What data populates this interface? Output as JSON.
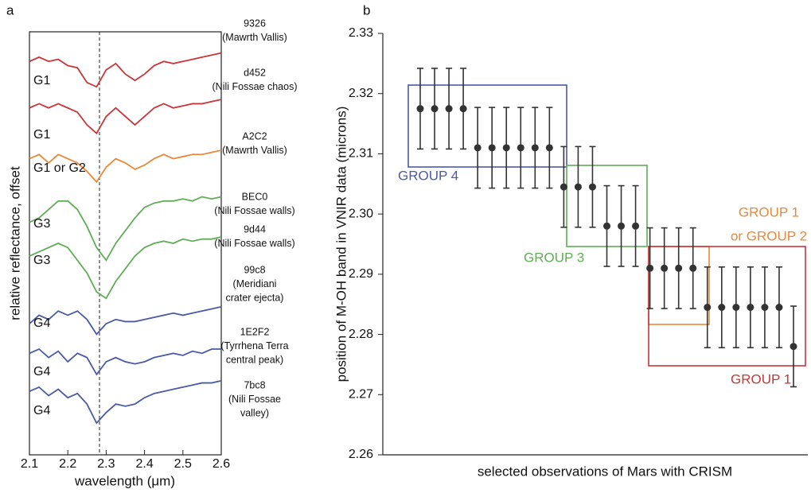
{
  "chart_data": [
    {
      "type": "line",
      "panel": "a",
      "xlabel": "wavelength (μm)",
      "ylabel": "relative reflectance, offset",
      "xlim": [
        2.1,
        2.6
      ],
      "xticks": [
        2.1,
        2.2,
        2.3,
        2.4,
        2.5,
        2.6
      ],
      "ylim": [
        0,
        100
      ],
      "x": [
        2.1,
        2.125,
        2.15,
        2.175,
        2.2,
        2.225,
        2.25,
        2.275,
        2.3,
        2.325,
        2.35,
        2.375,
        2.4,
        2.425,
        2.45,
        2.475,
        2.5,
        2.525,
        2.55,
        2.575,
        2.6
      ],
      "series": [
        {
          "name": [
            "9326",
            "(Mawrth Vallis)"
          ],
          "group": "G1",
          "color": "#c8363a",
          "values": [
            93,
            94,
            93,
            93.5,
            92,
            91.5,
            88,
            87,
            91,
            92.5,
            90,
            88.5,
            90,
            92,
            93,
            92.5,
            93,
            93.5,
            94,
            94.5,
            95
          ]
        },
        {
          "name": [
            "d452",
            "(Nili Fossae chaos)"
          ],
          "group": "G1",
          "color": "#c8363a",
          "values": [
            82,
            83,
            82,
            83,
            82,
            81,
            78,
            76,
            80,
            82,
            80,
            78,
            80,
            82,
            83,
            82,
            82.5,
            83,
            83,
            83.5,
            84
          ]
        },
        {
          "name": [
            "A2C2",
            "(Mawrth Vallis)"
          ],
          "group": "G1 or G2",
          "color": "#e8883a",
          "values": [
            70,
            71,
            69,
            71,
            70,
            69,
            67,
            64.5,
            68,
            70,
            69,
            67.5,
            68.5,
            70,
            71,
            70,
            70.5,
            71,
            71,
            71.5,
            72
          ]
        },
        {
          "name": [
            "BEC0",
            "(Nili Fossae walls)"
          ],
          "group": "G3",
          "color": "#5fae56",
          "values": [
            55,
            56,
            58,
            60,
            60,
            58,
            54,
            49,
            46,
            50,
            53,
            56,
            58.5,
            59.5,
            60,
            60,
            60.5,
            60,
            61,
            60.5,
            61
          ]
        },
        {
          "name": [
            "9d44",
            "(Nili Fossae walls)"
          ],
          "group": "G3",
          "color": "#5fae56",
          "values": [
            47,
            48,
            49,
            50,
            49,
            46,
            43,
            38.5,
            37,
            41,
            44,
            47,
            49,
            50,
            50.5,
            50,
            51,
            50.5,
            51,
            51,
            51.5
          ]
        },
        {
          "name": [
            "99c8",
            "(Meridiani",
            "crater ejecta)"
          ],
          "group": "G4",
          "color": "#4a5aa6",
          "values": [
            31,
            33,
            32,
            34,
            33,
            34,
            32,
            28.5,
            31,
            32,
            31.5,
            31.5,
            32,
            32.5,
            33,
            33.5,
            33,
            33.5,
            34,
            34.5,
            35
          ]
        },
        {
          "name": [
            "1E2F2",
            "(Tyrrhena Terra",
            "central peak)"
          ],
          "group": "G4",
          "color": "#4a5aa6",
          "values": [
            24,
            25,
            23,
            24.5,
            22,
            24,
            23,
            19,
            22,
            23,
            22,
            21.5,
            22,
            23,
            23.5,
            24,
            23.5,
            24.5,
            24,
            25,
            25
          ]
        },
        {
          "name": [
            "7bc8",
            "(Nili Fossae",
            "valley)"
          ],
          "group": "G4",
          "color": "#4a5aa6",
          "values": [
            15,
            16,
            14,
            15.5,
            13.5,
            14.5,
            12,
            7.5,
            10,
            12,
            11.5,
            12,
            13.5,
            14.5,
            15,
            15.5,
            16,
            16.5,
            17,
            17,
            17.5
          ]
        }
      ]
    },
    {
      "type": "errorbar",
      "panel": "b",
      "xlabel": "selected observations of Mars with CRISM",
      "ylabel": "position of M-OH band in VNIR data (microns)",
      "ylim": [
        2.26,
        2.33
      ],
      "yticks": [
        2.26,
        2.27,
        2.28,
        2.29,
        {
          "value": 2.3,
          "label": "2.30"
        },
        2.31,
        2.32,
        2.33
      ],
      "color": "#333333",
      "categories": [
        null,
        null,
        null,
        null,
        null,
        null,
        null,
        null,
        null,
        null,
        null,
        null,
        null,
        null,
        null,
        null,
        null,
        null,
        null,
        null,
        null,
        null,
        null,
        null,
        null,
        null,
        null
      ],
      "values": [
        2.3175,
        2.3175,
        2.3175,
        2.3175,
        2.311,
        2.311,
        2.311,
        2.311,
        2.311,
        2.311,
        2.3045,
        2.3045,
        2.3045,
        2.298,
        2.298,
        2.298,
        2.291,
        2.291,
        2.291,
        2.291,
        2.2845,
        2.2845,
        2.2845,
        2.2845,
        2.2845,
        2.2845,
        2.278
      ],
      "errors": [
        0.0067,
        0.0067,
        0.0067,
        0.0067,
        0.0067,
        0.0067,
        0.0067,
        0.0067,
        0.0067,
        0.0067,
        0.0067,
        0.0067,
        0.0067,
        0.0067,
        0.0067,
        0.0067,
        0.0067,
        0.0067,
        0.0067,
        0.0067,
        0.0067,
        0.0067,
        0.0067,
        0.0067,
        0.0067,
        0.0067,
        0.0067
      ],
      "annotations": [
        {
          "text": [
            "GROUP 4"
          ],
          "color": "#4a5aa6"
        },
        {
          "text": [
            "GROUP 3"
          ],
          "color": "#5fae56"
        },
        {
          "text": [
            "GROUP 1",
            "or GROUP 2"
          ],
          "color": "#e8883a"
        },
        {
          "text": [
            "GROUP 1"
          ],
          "color": "#c8363a"
        }
      ]
    }
  ]
}
